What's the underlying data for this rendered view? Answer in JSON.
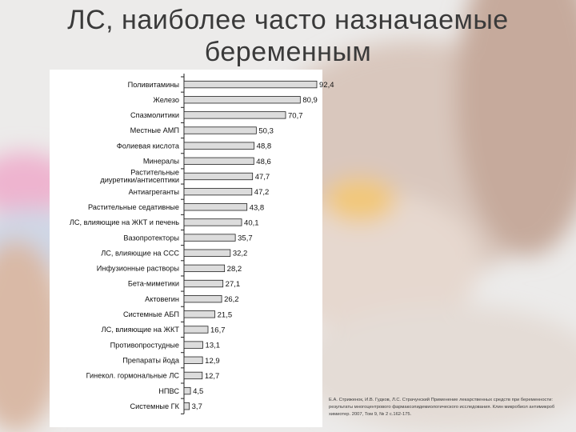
{
  "slide": {
    "title_line1": "ЛС, наиболее часто назначаемые",
    "title_line2": "беременным",
    "citation": "Е.А. Стриженок, И.В. Гудков, Л.С. Страчунский Применение лекарственных средств при беременности: результаты многоцентрового фармакоэпидемиологического исследования. Клин микробиол антимикроб химиотер. 2007, Том 9, № 2 с.162-175."
  },
  "colors": {
    "bar_fill": "#dcdcdc",
    "bar_edge": "#222222",
    "axis": "#222222",
    "text": "#111111"
  },
  "chart_data": {
    "type": "bar",
    "orientation": "horizontal",
    "categories": [
      [
        "Поливитамины"
      ],
      [
        "Железо"
      ],
      [
        "Спазмолитики"
      ],
      [
        "Местные АМП"
      ],
      [
        "Фолиевая кислота"
      ],
      [
        "Минералы"
      ],
      [
        "Растительные",
        "диуретики/антисептики"
      ],
      [
        "Антиагреганты"
      ],
      [
        "Растительные седативные"
      ],
      [
        "ЛС, влияющие на ЖКТ и печень"
      ],
      [
        "Вазопротекторы"
      ],
      [
        "ЛС, влияющие на ССС"
      ],
      [
        "Инфузионные растворы"
      ],
      [
        "Бета-миметики"
      ],
      [
        "Актовегин"
      ],
      [
        "Системные АБП"
      ],
      [
        "ЛС, влияющие на ЖКТ"
      ],
      [
        "Противопростудные"
      ],
      [
        "Препараты йода"
      ],
      [
        "Гинекол. гормональные ЛС"
      ],
      [
        "НПВС"
      ],
      [
        "Системные ГК"
      ]
    ],
    "values": [
      92.4,
      80.9,
      70.7,
      50.3,
      48.8,
      48.6,
      47.7,
      47.2,
      43.8,
      40.1,
      35.7,
      32.2,
      28.2,
      27.1,
      26.2,
      21.5,
      16.7,
      13.1,
      12.9,
      12.7,
      4.5,
      3.7
    ],
    "value_labels": [
      "92,4",
      "80,9",
      "70,7",
      "50,3",
      "48,8",
      "48,6",
      "47,7",
      "47,2",
      "43,8",
      "40,1",
      "35,7",
      "32,2",
      "28,2",
      "27,1",
      "26,2",
      "21,5",
      "16,7",
      "13,1",
      "12,9",
      "12,7",
      "4,5",
      "3,7"
    ],
    "xlim": [
      0,
      100
    ],
    "grid": false,
    "title": "",
    "xlabel": "",
    "ylabel": ""
  }
}
